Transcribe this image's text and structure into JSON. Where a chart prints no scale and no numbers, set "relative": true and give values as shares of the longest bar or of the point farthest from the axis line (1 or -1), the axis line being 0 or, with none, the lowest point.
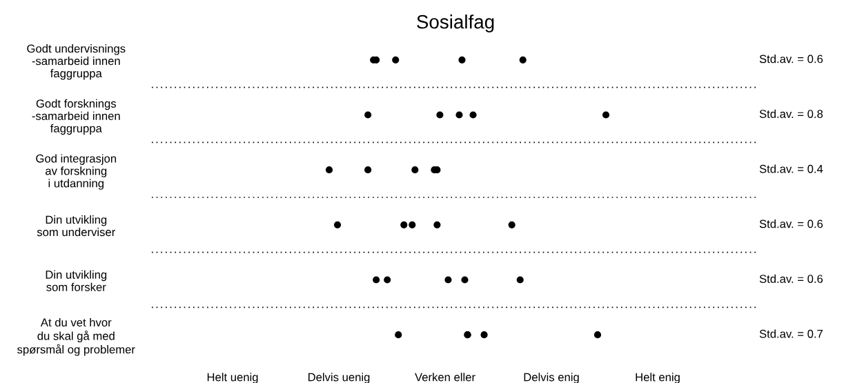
{
  "chart_data": {
    "type": "scatter",
    "title": "Sosialfag",
    "orientation": "horizontal",
    "relative": true,
    "categories": [
      "Godt undervisnings\n-samarbeid innen\nfaggruppa",
      "Godt forsknings\n-samarbeid innen\nfaggruppa",
      "God integrasjon\nav forskning\ni utdanning",
      "Din utvikling\nsom underviser",
      "Din utvikling\nsom forsker",
      "At du vet hvor\ndu skal gå med\nspørsmål og problemer"
    ],
    "series": [
      {
        "color": "#000000",
        "values": [
          0.17,
          0.14,
          0.14,
          0.3,
          0.17,
          0.25
        ]
      },
      {
        "color": "#000000",
        "values": [
          0.24,
          0.4,
          0.31,
          0.03,
          0.49,
          0.56
        ]
      },
      {
        "color": "#000000",
        "values": [
          0.48,
          0.47,
          0.38,
          0.66,
          0.43,
          0.5
        ]
      },
      {
        "color": "#000000",
        "values": [
          0.16,
          0.52,
          0.39,
          0.27,
          0.21,
          0.5
        ]
      },
      {
        "color": "#000000",
        "values": [
          0.7,
          1.0,
          0.0,
          0.39,
          0.69,
          0.97
        ]
      }
    ],
    "annotations": [
      "Std.av. = 0.6",
      "Std.av. = 0.8",
      "Std.av. = 0.4",
      "Std.av. = 0.6",
      "Std.av. = 0.6",
      "Std.av. = 0.7",
      "Helt uenig",
      "Delvis uenig",
      "Verken eller",
      "Delvis enig",
      "Helt enig"
    ],
    "marker": "circle"
  }
}
